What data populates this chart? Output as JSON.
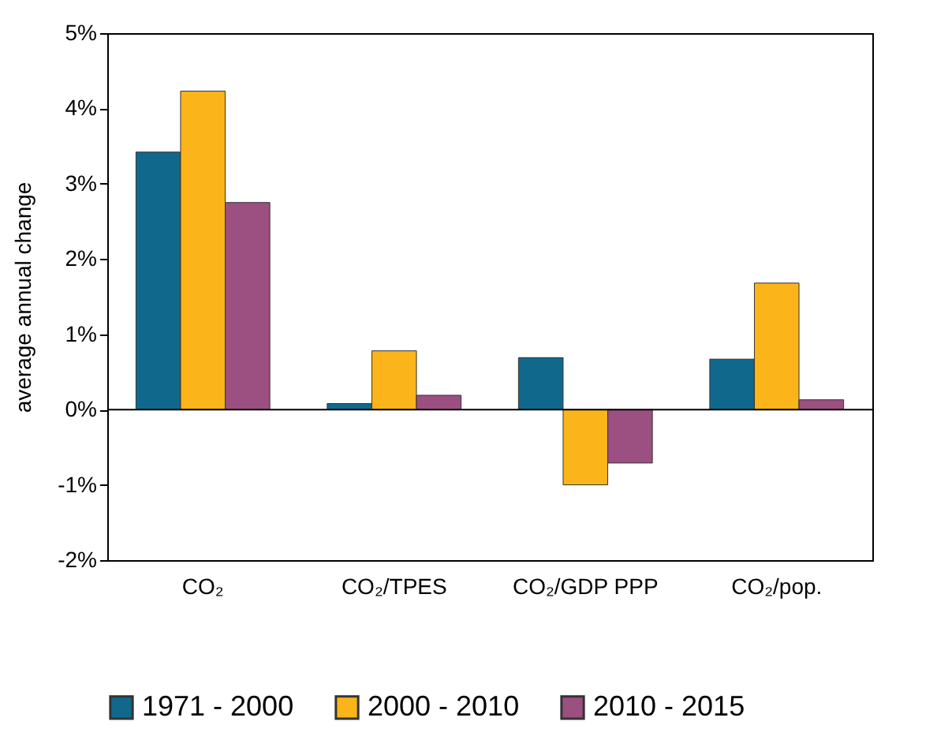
{
  "chart_data": {
    "type": "bar",
    "ylabel": "average annual change",
    "categories": [
      "CO₂",
      "CO₂/TPES",
      "CO₂/GDP PPP",
      "CO₂/pop."
    ],
    "series": [
      {
        "name": "1971 - 2000",
        "color": "#10698c",
        "values": [
          3.42,
          0.08,
          0.69,
          0.67
        ]
      },
      {
        "name": "2000 - 2010",
        "color": "#fbb419",
        "values": [
          4.23,
          0.78,
          -1.0,
          1.68
        ]
      },
      {
        "name": "2010 - 2015",
        "color": "#9c4f81",
        "values": [
          2.75,
          0.19,
          -0.71,
          0.13
        ]
      }
    ],
    "ylim": [
      -2,
      5
    ],
    "yticks": [
      {
        "value": -2,
        "label": "-2%"
      },
      {
        "value": -1,
        "label": "-1%"
      },
      {
        "value": 0,
        "label": "0%"
      },
      {
        "value": 1,
        "label": "1%"
      },
      {
        "value": 2,
        "label": "2%"
      },
      {
        "value": 3,
        "label": "3%"
      },
      {
        "value": 4,
        "label": "4%"
      },
      {
        "value": 5,
        "label": "5%"
      }
    ],
    "ref_lines": [
      {
        "axis": "y",
        "value": 0
      }
    ],
    "legend": "bottom",
    "grid": false
  }
}
